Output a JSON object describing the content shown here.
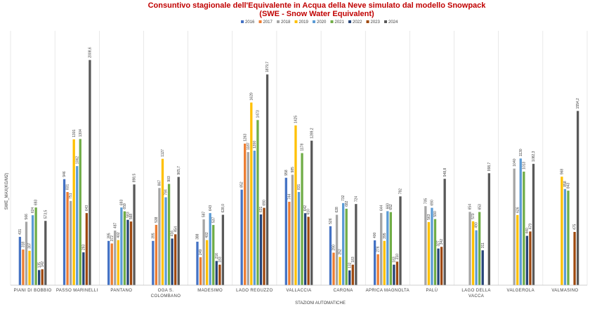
{
  "chart_data": {
    "type": "bar",
    "title_line1": "Consuntivo stagionale dell'Equivalente in Acqua della Neve simulato dal modello Snowpack",
    "title_line2": "(SWE - Snow Water Equivalent)",
    "xlabel": "STAZIONI AUTOMATICHE",
    "ylabel": "SWE_MAX(KG/M2)",
    "ylim": [
      0,
      2200
    ],
    "grid": false,
    "legend_position": "top",
    "categories": [
      [
        "PIANI DI BOBBIO"
      ],
      [
        "PASSO MARINELLI"
      ],
      [
        "PANTANO"
      ],
      [
        "OGA S.",
        "COLOMBANO"
      ],
      [
        "MADESIMO"
      ],
      [
        "LAGO REGUZZO"
      ],
      [
        "VALLACCIA"
      ],
      [
        "CARONA"
      ],
      [
        "APRICA MAGNOLTA"
      ],
      [
        "PALÙ"
      ],
      [
        "LAGO DELLA",
        "VACCA"
      ],
      [
        "VALGEROLA"
      ],
      [
        "VALMASINO"
      ]
    ],
    "series": [
      {
        "name": "2016",
        "color": "#4472c4",
        "values": [
          431,
          946,
          395,
          395,
          388,
          852,
          958,
          526,
          400,
          null,
          null,
          null,
          null
        ],
        "labels": [
          "431",
          "946",
          "395",
          "395",
          "388",
          "852",
          "958",
          "526",
          "400",
          null,
          null,
          null,
          null
        ]
      },
      {
        "name": "2017",
        "color": "#ed7d31",
        "values": [
          318,
          831,
          372,
          538,
          249,
          1263,
          744,
          290,
          276,
          null,
          null,
          null,
          null
        ],
        "labels": [
          "318",
          "831",
          "372",
          "538",
          "249",
          "1263",
          "744",
          "290",
          "276",
          null,
          null,
          null,
          null
        ]
      },
      {
        "name": "2018",
        "color": "#a5a5a5",
        "values": [
          566,
          751,
          487,
          867,
          587,
          1187,
          985,
          628,
          644,
          705,
          654,
          1040,
          null
        ],
        "labels": [
          "566",
          "751",
          "487",
          "867",
          "587",
          "1187",
          "985",
          "628",
          "644",
          "705",
          "654",
          "1040",
          null
        ]
      },
      {
        "name": "2019",
        "color": "#ffc000",
        "values": [
          307,
          1301,
          402,
          1127,
          402,
          1629,
          1425,
          252,
          395,
          563,
          570,
          626,
          968
        ],
        "labels": [
          "307",
          "1301",
          "402",
          "1127",
          "402",
          "1629",
          "1425",
          "252",
          "395",
          "563",
          "570",
          "626",
          "968"
        ]
      },
      {
        "name": "2020",
        "color": "#5b9bd5",
        "values": [
          624,
          1062,
          693,
          784,
          643,
          1200,
          831,
          732,
          660,
          690,
          490,
          1130,
          858
        ],
        "labels": [
          "624",
          "1062",
          "693",
          "784",
          "643",
          "1200",
          "831",
          "732",
          "660",
          "690",
          "490",
          "1130",
          "858"
        ]
      },
      {
        "name": "2021",
        "color": "#70ad47",
        "values": [
          693,
          1304,
          659,
          903,
          537,
          1473,
          1178,
          682,
          652,
          590,
          653,
          1013,
          843
        ],
        "labels": [
          "693",
          "1304",
          "659",
          "903",
          "537",
          "1473",
          "1178",
          "682",
          "652",
          "590",
          "653",
          "1013",
          "843"
        ]
      },
      {
        "name": "2022",
        "color": "#264478",
        "values": [
          135,
          293,
          583,
          416,
          216,
          631,
          642,
          132,
          183,
          327,
          311,
          440,
          null
        ],
        "labels": [
          "135",
          "293",
          "583",
          "416",
          "216",
          "631",
          "642",
          "132",
          "183",
          "327",
          "311",
          "440",
          null
        ]
      },
      {
        "name": "2023",
        "color": "#9e480e",
        "values": [
          142,
          643,
          568,
          454,
          183,
          690,
          610,
          183,
          210,
          342,
          null,
          479,
          475
        ],
        "labels": [
          "142",
          "643",
          "568",
          "454",
          "183",
          "690",
          "610",
          "183",
          "210",
          "342",
          null,
          "479",
          "475"
        ]
      },
      {
        "name": "2024",
        "color": "#595959",
        "values": [
          573.5,
          2008.6,
          898.5,
          965.7,
          628.0,
          1879.7,
          1289.2,
          724,
          792,
          948.8,
          998.7,
          1082.3,
          1554.2
        ],
        "labels": [
          "573,5",
          "2008,6",
          "898,5",
          "965,7",
          "628,0",
          "1879,7",
          "1289,2",
          "724",
          "792",
          "948,8",
          "998,7",
          "1082,3",
          "1554,2"
        ]
      }
    ]
  }
}
